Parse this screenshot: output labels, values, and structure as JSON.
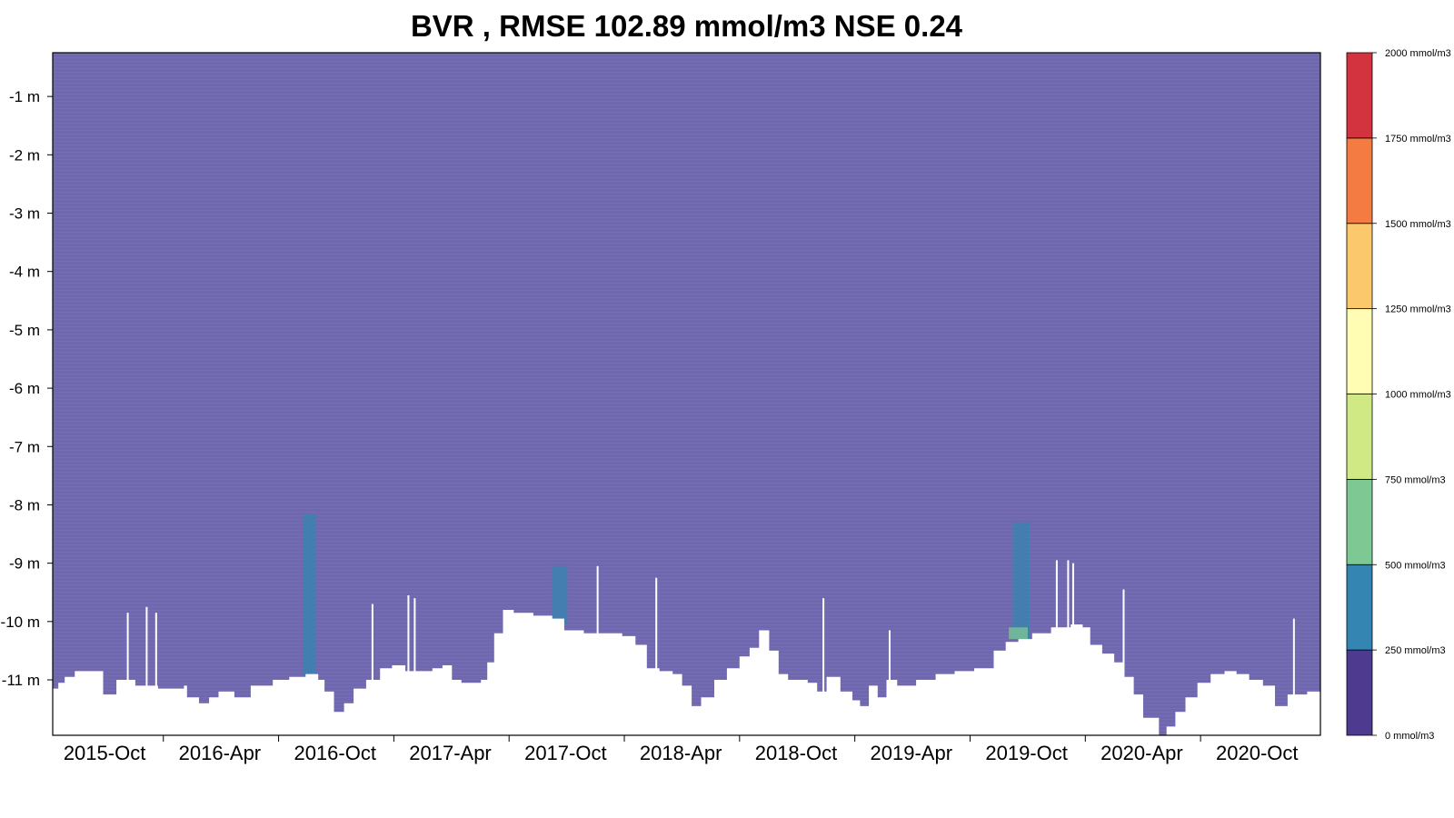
{
  "chart_data": {
    "type": "heatmap",
    "title": "BVR , RMSE 102.89 mmol/m3 NSE 0.24",
    "xlabel": "",
    "ylabel": "",
    "x_range": [
      "2015-08-01",
      "2021-01-31"
    ],
    "y_range": [
      -11.95,
      -0.25
    ],
    "x_ticks": [
      "2015-Oct",
      "2016-Apr",
      "2016-Oct",
      "2017-Apr",
      "2017-Oct",
      "2018-Apr",
      "2018-Oct",
      "2019-Apr",
      "2019-Oct",
      "2020-Apr",
      "2020-Oct"
    ],
    "y_ticks": [
      "-1 m",
      "-2 m",
      "-3 m",
      "-4 m",
      "-5 m",
      "-6 m",
      "-7 m",
      "-8 m",
      "-9 m",
      "-10 m",
      "-11 m"
    ],
    "y_tick_values": [
      -1,
      -2,
      -3,
      -4,
      -5,
      -6,
      -7,
      -8,
      -9,
      -10,
      -11
    ],
    "colorbar": {
      "min": 0,
      "max": 2000,
      "labels": [
        "0 mmol/m3",
        "250 mmol/m3",
        "500 mmol/m3",
        "750 mmol/m3",
        "1000 mmol/m3",
        "1250 mmol/m3",
        "1500 mmol/m3",
        "1750 mmol/m3",
        "2000 mmol/m3"
      ],
      "bin_colors": [
        "#4e3a8f",
        "#3585b2",
        "#7ec894",
        "#d0e985",
        "#fffcb4",
        "#fbc86b",
        "#f47b41",
        "#d3323f"
      ]
    },
    "background_value_color": "#7068ae",
    "bottom_boundary": [
      [
        "2015-08-01",
        -11.15
      ],
      [
        "2015-08-10",
        -11.05
      ],
      [
        "2015-08-20",
        -10.95
      ],
      [
        "2015-09-05",
        -10.85
      ],
      [
        "2015-10-05",
        -10.85
      ],
      [
        "2015-10-20",
        -11.25
      ],
      [
        "2015-11-10",
        -11.0
      ],
      [
        "2015-12-10",
        -11.1
      ],
      [
        "2016-01-15",
        -11.15
      ],
      [
        "2016-02-10",
        -11.15
      ],
      [
        "2016-02-25",
        -11.1
      ],
      [
        "2016-03-01",
        -11.3
      ],
      [
        "2016-03-20",
        -11.4
      ],
      [
        "2016-04-05",
        -11.3
      ],
      [
        "2016-04-20",
        -11.2
      ],
      [
        "2016-05-15",
        -11.3
      ],
      [
        "2016-06-10",
        -11.1
      ],
      [
        "2016-07-15",
        -11.0
      ],
      [
        "2016-08-10",
        -10.95
      ],
      [
        "2016-09-05",
        -10.9
      ],
      [
        "2016-09-25",
        -11.0
      ],
      [
        "2016-10-05",
        -11.2
      ],
      [
        "2016-10-20",
        -11.55
      ],
      [
        "2016-11-05",
        -11.4
      ],
      [
        "2016-11-20",
        -11.15
      ],
      [
        "2016-12-10",
        -11.0
      ],
      [
        "2017-01-01",
        -10.8
      ],
      [
        "2017-01-20",
        -10.75
      ],
      [
        "2017-02-10",
        -10.85
      ],
      [
        "2017-03-10",
        -10.85
      ],
      [
        "2017-03-25",
        -10.8
      ],
      [
        "2017-04-10",
        -10.75
      ],
      [
        "2017-04-25",
        -11.0
      ],
      [
        "2017-05-10",
        -11.05
      ],
      [
        "2017-06-10",
        -11.0
      ],
      [
        "2017-06-20",
        -10.7
      ],
      [
        "2017-07-01",
        -10.2
      ],
      [
        "2017-07-15",
        -9.8
      ],
      [
        "2017-08-01",
        -9.85
      ],
      [
        "2017-09-01",
        -9.9
      ],
      [
        "2017-10-01",
        -9.95
      ],
      [
        "2017-10-20",
        -10.15
      ],
      [
        "2017-11-20",
        -10.2
      ],
      [
        "2017-12-20",
        -10.2
      ],
      [
        "2018-01-20",
        -10.25
      ],
      [
        "2018-02-10",
        -10.4
      ],
      [
        "2018-02-28",
        -10.8
      ],
      [
        "2018-03-20",
        -10.85
      ],
      [
        "2018-04-10",
        -10.9
      ],
      [
        "2018-04-25",
        -11.1
      ],
      [
        "2018-05-10",
        -11.45
      ],
      [
        "2018-05-25",
        -11.3
      ],
      [
        "2018-06-15",
        -11.0
      ],
      [
        "2018-07-05",
        -10.8
      ],
      [
        "2018-07-25",
        -10.6
      ],
      [
        "2018-08-10",
        -10.45
      ],
      [
        "2018-08-25",
        -10.15
      ],
      [
        "2018-09-10",
        -10.5
      ],
      [
        "2018-09-25",
        -10.9
      ],
      [
        "2018-10-10",
        -11.0
      ],
      [
        "2018-11-10",
        -11.05
      ],
      [
        "2018-11-25",
        -11.2
      ],
      [
        "2018-12-10",
        -10.95
      ],
      [
        "2019-01-01",
        -11.2
      ],
      [
        "2019-01-20",
        -11.35
      ],
      [
        "2019-02-01",
        -11.45
      ],
      [
        "2019-02-15",
        -11.1
      ],
      [
        "2019-03-01",
        -11.3
      ],
      [
        "2019-03-15",
        -11.0
      ],
      [
        "2019-04-01",
        -11.1
      ],
      [
        "2019-05-01",
        -11.0
      ],
      [
        "2019-06-01",
        -10.9
      ],
      [
        "2019-07-01",
        -10.85
      ],
      [
        "2019-08-01",
        -10.8
      ],
      [
        "2019-09-01",
        -10.5
      ],
      [
        "2019-09-20",
        -10.35
      ],
      [
        "2019-10-10",
        -10.3
      ],
      [
        "2019-11-01",
        -10.2
      ],
      [
        "2019-12-01",
        -10.1
      ],
      [
        "2020-01-01",
        -10.05
      ],
      [
        "2020-01-20",
        -10.1
      ],
      [
        "2020-02-01",
        -10.4
      ],
      [
        "2020-02-20",
        -10.55
      ],
      [
        "2020-03-10",
        -10.7
      ],
      [
        "2020-03-25",
        -10.95
      ],
      [
        "2020-04-10",
        -11.25
      ],
      [
        "2020-04-25",
        -11.65
      ],
      [
        "2020-05-10",
        -11.65
      ],
      [
        "2020-05-20",
        -11.95
      ],
      [
        "2020-06-01",
        -11.8
      ],
      [
        "2020-06-15",
        -11.55
      ],
      [
        "2020-07-01",
        -11.3
      ],
      [
        "2020-07-20",
        -11.05
      ],
      [
        "2020-08-10",
        -10.9
      ],
      [
        "2020-09-01",
        -10.85
      ],
      [
        "2020-09-20",
        -10.9
      ],
      [
        "2020-10-10",
        -11.0
      ],
      [
        "2020-11-01",
        -11.1
      ],
      [
        "2020-11-20",
        -11.45
      ],
      [
        "2020-12-10",
        -11.25
      ],
      [
        "2021-01-10",
        -11.2
      ],
      [
        "2021-01-31",
        -11.25
      ]
    ],
    "gaps": [
      {
        "date": "2015-11-28",
        "top": -9.85
      },
      {
        "date": "2015-12-28",
        "top": -9.75
      },
      {
        "date": "2016-01-12",
        "top": -9.85
      },
      {
        "date": "2016-12-20",
        "top": -9.7
      },
      {
        "date": "2017-02-15",
        "top": -9.55
      },
      {
        "date": "2017-02-25",
        "top": -9.6
      },
      {
        "date": "2017-12-12",
        "top": -9.05
      },
      {
        "date": "2018-03-15",
        "top": -9.25
      },
      {
        "date": "2018-12-05",
        "top": -9.6
      },
      {
        "date": "2019-03-20",
        "top": -10.15
      },
      {
        "date": "2019-12-10",
        "top": -8.95
      },
      {
        "date": "2019-12-28",
        "top": -8.95
      },
      {
        "date": "2020-01-05",
        "top": -9.0
      },
      {
        "date": "2020-03-25",
        "top": -9.45
      },
      {
        "date": "2020-12-20",
        "top": -9.95
      }
    ],
    "high_value_patches": [
      {
        "start": "2016-09-01",
        "end": "2016-09-22",
        "top": -8.15,
        "bottom": -11.15,
        "value": 400
      },
      {
        "start": "2017-10-01",
        "end": "2017-10-25",
        "top": -9.05,
        "bottom": -10.05,
        "value": 400
      },
      {
        "start": "2019-10-01",
        "end": "2019-10-28",
        "top": -8.3,
        "bottom": -10.3,
        "value": 420
      },
      {
        "start": "2019-09-25",
        "end": "2019-10-25",
        "top": -10.1,
        "bottom": -10.3,
        "value": 550
      }
    ]
  }
}
